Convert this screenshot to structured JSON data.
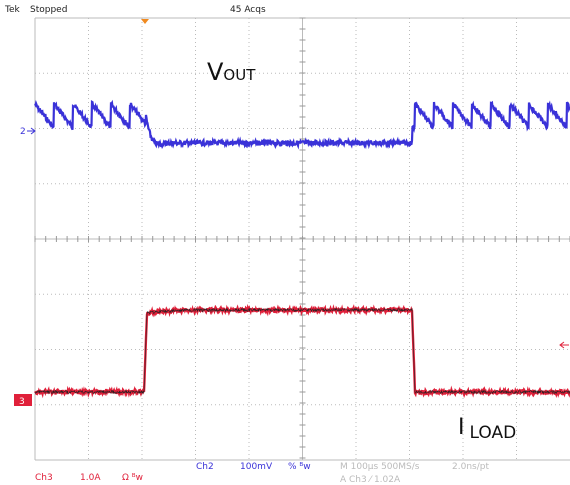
{
  "header": {
    "brand": "Tek",
    "status": "Stopped",
    "acquisitions": "45 Acqs"
  },
  "labels": {
    "vout": {
      "main": "V",
      "sub": "OUT"
    },
    "iload": {
      "main": "I",
      "sub": "LOAD"
    }
  },
  "markers": {
    "ch2": "2",
    "ch3": "3"
  },
  "footer": {
    "ch3": {
      "name": "Ch3",
      "scale": "1.0A",
      "coupling": "Ω ᴮw"
    },
    "ch2": {
      "name": "Ch2",
      "scale": "100mV",
      "coupling": "% ᴮw"
    },
    "timebase": "M 100µs 500MS/s",
    "resolution": "2.0ns/pt",
    "trigger": "A  Ch3  ⁄  1.02A"
  }
}
